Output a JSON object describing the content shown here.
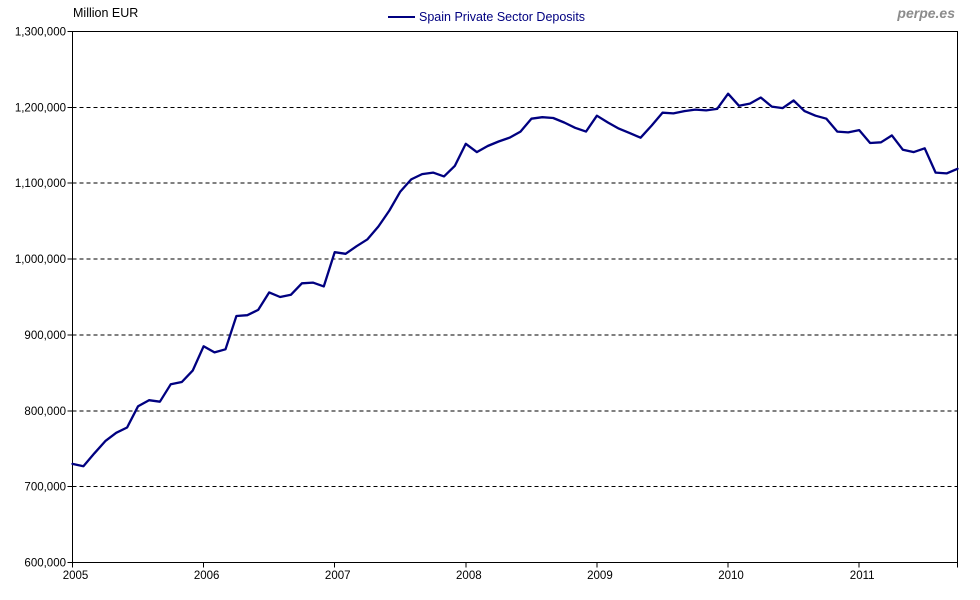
{
  "watermark": {
    "text": "perpe.es",
    "color": "#8c8c8c"
  },
  "chart_data": {
    "type": "line",
    "title": "Million EUR",
    "xlabel": "",
    "ylabel": "Million EUR",
    "ylim": [
      600000,
      1300000
    ],
    "y_tick_step": 100000,
    "y_tick_labels": [
      "600,000",
      "700,000",
      "800,000",
      "900,000",
      "1,000,000",
      "1,100,000",
      "1,200,000",
      "1,300,000"
    ],
    "x_tick_labels": [
      "2005",
      "2006",
      "2007",
      "2008",
      "2009",
      "2010",
      "2011"
    ],
    "grid": "horizontal-dashed",
    "legend_position": "top-center",
    "line_color": "#000080",
    "x": [
      "2005-01",
      "2005-02",
      "2005-03",
      "2005-04",
      "2005-05",
      "2005-06",
      "2005-07",
      "2005-08",
      "2005-09",
      "2005-10",
      "2005-11",
      "2005-12",
      "2006-01",
      "2006-02",
      "2006-03",
      "2006-04",
      "2006-05",
      "2006-06",
      "2006-07",
      "2006-08",
      "2006-09",
      "2006-10",
      "2006-11",
      "2006-12",
      "2007-01",
      "2007-02",
      "2007-03",
      "2007-04",
      "2007-05",
      "2007-06",
      "2007-07",
      "2007-08",
      "2007-09",
      "2007-10",
      "2007-11",
      "2007-12",
      "2008-01",
      "2008-02",
      "2008-03",
      "2008-04",
      "2008-05",
      "2008-06",
      "2008-07",
      "2008-08",
      "2008-09",
      "2008-10",
      "2008-11",
      "2008-12",
      "2009-01",
      "2009-02",
      "2009-03",
      "2009-04",
      "2009-05",
      "2009-06",
      "2009-07",
      "2009-08",
      "2009-09",
      "2009-10",
      "2009-11",
      "2009-12",
      "2010-01",
      "2010-02",
      "2010-03",
      "2010-04",
      "2010-05",
      "2010-06",
      "2010-07",
      "2010-08",
      "2010-09",
      "2010-10",
      "2010-11",
      "2010-12",
      "2011-01",
      "2011-02",
      "2011-03",
      "2011-04",
      "2011-05",
      "2011-06",
      "2011-07",
      "2011-08",
      "2011-09",
      "2011-10"
    ],
    "series": [
      {
        "name": "Spain Private Sector Deposits",
        "color": "#000080",
        "values": [
          730000,
          727000,
          744000,
          760000,
          771000,
          778000,
          806000,
          814000,
          812000,
          835000,
          838000,
          853000,
          885000,
          877000,
          881000,
          925000,
          926000,
          933000,
          956000,
          950000,
          953000,
          968000,
          969000,
          964000,
          1009000,
          1007000,
          1017000,
          1026000,
          1043000,
          1064000,
          1089000,
          1105000,
          1112000,
          1114000,
          1109000,
          1123000,
          1152000,
          1141000,
          1149000,
          1155000,
          1160000,
          1168000,
          1185000,
          1187000,
          1186000,
          1180000,
          1173000,
          1168000,
          1189000,
          1180000,
          1172000,
          1166000,
          1160000,
          1176000,
          1193000,
          1192000,
          1195000,
          1197000,
          1196000,
          1198000,
          1218000,
          1202000,
          1205000,
          1213000,
          1201000,
          1199000,
          1209000,
          1195000,
          1189000,
          1185000,
          1168000,
          1167000,
          1170000,
          1153000,
          1154000,
          1163000,
          1144000,
          1141000,
          1146000,
          1114000,
          1113000,
          1119000
        ]
      }
    ]
  }
}
